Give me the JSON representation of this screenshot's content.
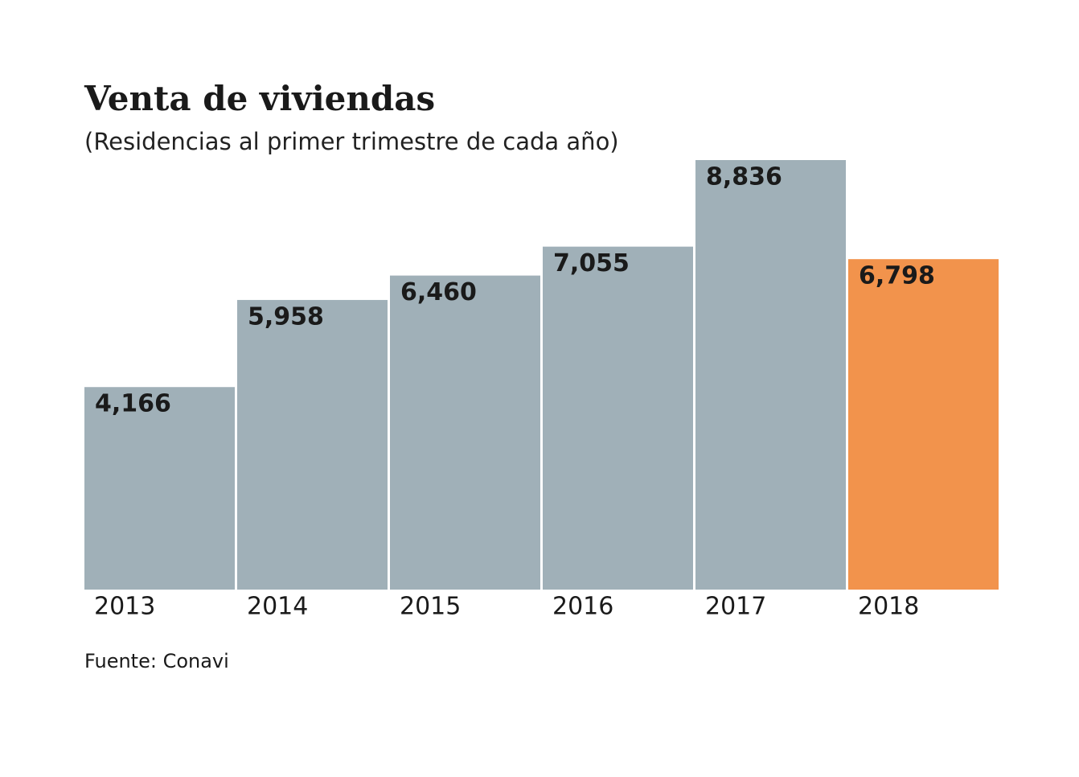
{
  "chart_data": {
    "type": "bar",
    "title": "Venta de viviendas",
    "subtitle": "(Residencias al primer trimestre de cada año)",
    "source": "Fuente: Conavi",
    "categories": [
      "2013",
      "2014",
      "2015",
      "2016",
      "2017",
      "2018"
    ],
    "values": [
      4166,
      5958,
      6460,
      7055,
      8836,
      6798
    ],
    "value_labels": [
      "4,166",
      "5,958",
      "6,460",
      "7,055",
      "8,836",
      "6,798"
    ],
    "colors": [
      "#a0b0b8",
      "#a0b0b8",
      "#a0b0b8",
      "#a0b0b8",
      "#a0b0b8",
      "#f2934c"
    ]
  }
}
